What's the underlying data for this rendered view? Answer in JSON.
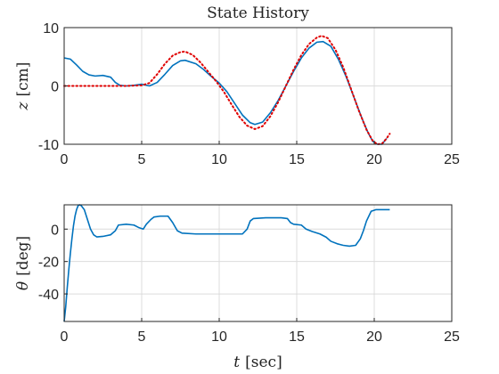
{
  "chart_data": [
    {
      "type": "line",
      "title": "State History",
      "xlabel": "",
      "ylabel_symbol": "z",
      "ylabel_unit": "[cm]",
      "xlim": [
        0,
        25
      ],
      "ylim": [
        -10,
        10
      ],
      "xticks": [
        "0",
        "5",
        "10",
        "15",
        "20",
        "25"
      ],
      "yticks": [
        "10",
        "0",
        "-10"
      ],
      "grid": true,
      "series": [
        {
          "color": "#0072BD",
          "style": "solid",
          "points": [
            [
              0,
              4.8
            ],
            [
              0.4,
              4.6
            ],
            [
              0.8,
              3.6
            ],
            [
              1.2,
              2.5
            ],
            [
              1.6,
              1.9
            ],
            [
              2.0,
              1.7
            ],
            [
              2.5,
              1.8
            ],
            [
              3.0,
              1.5
            ],
            [
              3.3,
              0.6
            ],
            [
              3.6,
              0.1
            ],
            [
              4.0,
              0.0
            ],
            [
              4.5,
              0.1
            ],
            [
              5.0,
              0.3
            ],
            [
              5.5,
              0.0
            ],
            [
              6.0,
              0.6
            ],
            [
              6.5,
              2.0
            ],
            [
              7.0,
              3.5
            ],
            [
              7.5,
              4.3
            ],
            [
              7.8,
              4.4
            ],
            [
              8.5,
              3.8
            ],
            [
              9.0,
              2.8
            ],
            [
              9.5,
              1.6
            ],
            [
              10.0,
              0.5
            ],
            [
              10.5,
              -1.0
            ],
            [
              11.0,
              -3.0
            ],
            [
              11.5,
              -5.0
            ],
            [
              12.0,
              -6.3
            ],
            [
              12.3,
              -6.6
            ],
            [
              12.8,
              -6.2
            ],
            [
              13.3,
              -4.6
            ],
            [
              13.8,
              -2.5
            ],
            [
              14.3,
              0.0
            ],
            [
              14.8,
              2.5
            ],
            [
              15.3,
              4.8
            ],
            [
              15.8,
              6.5
            ],
            [
              16.3,
              7.5
            ],
            [
              16.7,
              7.6
            ],
            [
              17.2,
              6.8
            ],
            [
              17.7,
              4.5
            ],
            [
              18.2,
              1.5
            ],
            [
              18.7,
              -2.0
            ],
            [
              19.2,
              -5.5
            ],
            [
              19.6,
              -8.0
            ],
            [
              19.9,
              -9.5
            ],
            [
              20.2,
              -10.0
            ],
            [
              20.5,
              -10.0
            ],
            [
              20.8,
              -9.0
            ]
          ]
        },
        {
          "color": "#E00000",
          "style": "dotted",
          "points": [
            [
              0,
              0
            ],
            [
              4.0,
              0
            ],
            [
              5.0,
              0.1
            ],
            [
              5.5,
              0.5
            ],
            [
              6.0,
              2.0
            ],
            [
              6.5,
              3.8
            ],
            [
              7.0,
              5.2
            ],
            [
              7.5,
              5.8
            ],
            [
              7.8,
              5.9
            ],
            [
              8.3,
              5.3
            ],
            [
              8.8,
              4.0
            ],
            [
              9.3,
              2.4
            ],
            [
              9.8,
              0.8
            ],
            [
              10.3,
              -1.0
            ],
            [
              10.8,
              -3.2
            ],
            [
              11.3,
              -5.3
            ],
            [
              11.8,
              -6.8
            ],
            [
              12.3,
              -7.4
            ],
            [
              12.8,
              -6.9
            ],
            [
              13.3,
              -5.2
            ],
            [
              13.8,
              -2.8
            ],
            [
              14.3,
              0.0
            ],
            [
              14.8,
              2.8
            ],
            [
              15.3,
              5.3
            ],
            [
              15.8,
              7.2
            ],
            [
              16.3,
              8.3
            ],
            [
              16.6,
              8.6
            ],
            [
              17.0,
              8.2
            ],
            [
              17.5,
              6.2
            ],
            [
              18.0,
              3.2
            ],
            [
              18.5,
              -0.5
            ],
            [
              19.0,
              -4.2
            ],
            [
              19.5,
              -7.5
            ],
            [
              19.9,
              -9.4
            ],
            [
              20.2,
              -10.0
            ],
            [
              20.5,
              -9.9
            ],
            [
              20.8,
              -9.0
            ],
            [
              21.0,
              -8.2
            ]
          ]
        }
      ]
    },
    {
      "type": "line",
      "title": "",
      "xlabel_symbol": "t",
      "xlabel_unit": "[sec]",
      "ylabel_symbol": "θ",
      "ylabel_unit": "[deg]",
      "xlim": [
        0,
        25
      ],
      "ylim": [
        -57,
        15
      ],
      "xticks": [
        "0",
        "5",
        "10",
        "15",
        "20",
        "25"
      ],
      "yticks": [
        "0",
        "-20",
        "-40"
      ],
      "ytick_values": [
        0,
        -20,
        -40
      ],
      "grid": true,
      "series": [
        {
          "color": "#0072BD",
          "style": "solid",
          "points": [
            [
              0,
              -57
            ],
            [
              0.1,
              -48
            ],
            [
              0.2,
              -36
            ],
            [
              0.3,
              -25
            ],
            [
              0.4,
              -15
            ],
            [
              0.5,
              -6
            ],
            [
              0.6,
              2
            ],
            [
              0.7,
              8
            ],
            [
              0.8,
              12
            ],
            [
              0.9,
              14.5
            ],
            [
              1.0,
              15
            ],
            [
              1.1,
              14.5
            ],
            [
              1.3,
              12
            ],
            [
              1.5,
              6
            ],
            [
              1.7,
              0
            ],
            [
              1.9,
              -3.5
            ],
            [
              2.1,
              -4.8
            ],
            [
              2.5,
              -4.5
            ],
            [
              3.0,
              -3.5
            ],
            [
              3.3,
              -1
            ],
            [
              3.5,
              2.5
            ],
            [
              4.0,
              3
            ],
            [
              4.5,
              2.5
            ],
            [
              4.8,
              1
            ],
            [
              5.1,
              0
            ],
            [
              5.3,
              3
            ],
            [
              5.6,
              6
            ],
            [
              5.8,
              7.5
            ],
            [
              6.2,
              8
            ],
            [
              6.7,
              8
            ],
            [
              7.0,
              4
            ],
            [
              7.3,
              -1
            ],
            [
              7.6,
              -2.5
            ],
            [
              8.5,
              -3
            ],
            [
              10.0,
              -3
            ],
            [
              11.5,
              -3
            ],
            [
              11.8,
              0
            ],
            [
              12.0,
              5
            ],
            [
              12.2,
              6.5
            ],
            [
              13,
              7
            ],
            [
              14,
              7
            ],
            [
              14.4,
              6.5
            ],
            [
              14.6,
              4
            ],
            [
              14.8,
              3
            ],
            [
              15.3,
              2.5
            ],
            [
              15.6,
              0
            ],
            [
              16,
              -1.5
            ],
            [
              16.5,
              -3
            ],
            [
              16.9,
              -5
            ],
            [
              17.2,
              -7.5
            ],
            [
              17.6,
              -9
            ],
            [
              18,
              -10
            ],
            [
              18.4,
              -10.5
            ],
            [
              18.8,
              -10
            ],
            [
              19.1,
              -6
            ],
            [
              19.3,
              -1
            ],
            [
              19.5,
              5
            ],
            [
              19.8,
              11
            ],
            [
              20.1,
              12
            ],
            [
              21,
              12
            ]
          ]
        }
      ]
    }
  ]
}
